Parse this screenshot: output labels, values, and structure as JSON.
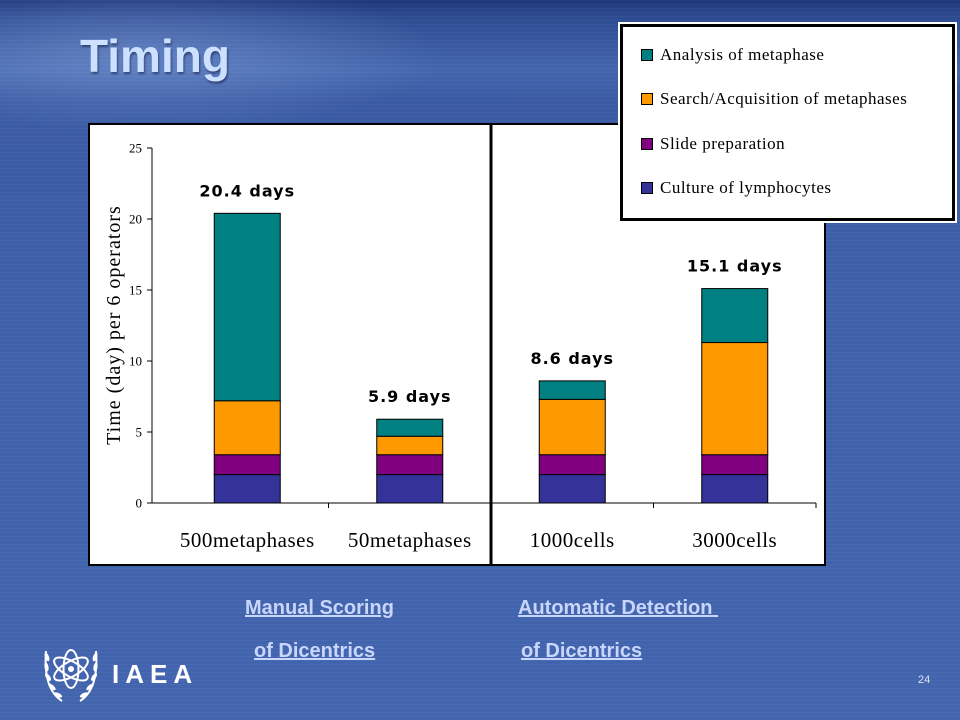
{
  "slide": {
    "title": "Timing",
    "captions": [
      {
        "line1": "Manual Scoring",
        "line2": "of Dicentrics"
      },
      {
        "line1": "Automatic Detection ",
        "line2": "of Dicentrics"
      }
    ],
    "logo_text": "IAEA",
    "logo_icon": "iaea-emblem-icon",
    "page_number": "24"
  },
  "colors": {
    "background": "#3f61aa",
    "title": "#cce0ff",
    "caption_link": "#c9d6fb",
    "chart_background": "#ffffff"
  },
  "chart_data": {
    "type": "bar",
    "stacked": true,
    "title": "",
    "xlabel": "",
    "ylabel": "Time (day) per 6 operators",
    "ylim": [
      0,
      25
    ],
    "yticks": [
      "0",
      "5",
      "10",
      "15",
      "20",
      "25"
    ],
    "categories": [
      "500metaphases",
      "50metaphases",
      "1000cells",
      "3000cells"
    ],
    "series": [
      {
        "name": "Culture of lymphocytes",
        "color": "#333399",
        "values": [
          2,
          2,
          2,
          2
        ]
      },
      {
        "name": "Slide preparation",
        "color": "#800080",
        "values": [
          1.4,
          1.4,
          1.4,
          1.4
        ]
      },
      {
        "name": "Search/Acquisition of metaphases",
        "color": "#ff9900",
        "values": [
          3.8,
          1.3,
          3.9,
          7.9
        ]
      },
      {
        "name": "Analysis of metaphase",
        "color": "#008080",
        "values": [
          13.2,
          1.2,
          1.3,
          3.8
        ]
      }
    ],
    "data_labels": [
      "20.4 days",
      "5.9 days",
      "8.6 days",
      "15.1 days"
    ],
    "legend_position": "top-right",
    "grid": false
  }
}
